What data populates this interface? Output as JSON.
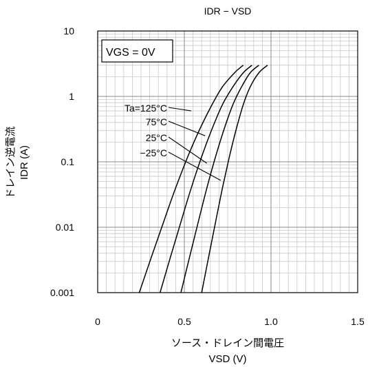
{
  "chart_data": {
    "type": "line",
    "title": "IDR − VSD",
    "xlabel_line1": "ソース・ドレイン間電圧",
    "xlabel_line2": "VSD (V)",
    "ylabel_line1": "ドレイン逆電流",
    "ylabel_line2": "IDR (A)",
    "xlim": [
      0,
      1.5
    ],
    "ylim": [
      0.001,
      10
    ],
    "yscale": "log",
    "grid": true,
    "x_ticks": [
      0,
      0.5,
      1.0,
      1.5
    ],
    "x_tick_labels": [
      "0",
      "0.5",
      "1.0",
      "1.5"
    ],
    "y_ticks": [
      0.001,
      0.01,
      0.1,
      1,
      10
    ],
    "y_tick_labels": [
      "0.001",
      "0.01",
      "0.1",
      "1",
      "10"
    ],
    "legend_box": "VGS = 0V",
    "series": [
      {
        "name": "Ta=125°C",
        "x": [
          0.24,
          0.31,
          0.38,
          0.45,
          0.52,
          0.59,
          0.66,
          0.72,
          0.79,
          0.84
        ],
        "y": [
          0.001,
          0.0035,
          0.012,
          0.04,
          0.12,
          0.32,
          0.75,
          1.4,
          2.3,
          3.0
        ]
      },
      {
        "name": "75°C",
        "x": [
          0.36,
          0.42,
          0.48,
          0.54,
          0.6,
          0.66,
          0.72,
          0.78,
          0.84,
          0.89
        ],
        "y": [
          0.001,
          0.0035,
          0.012,
          0.04,
          0.12,
          0.32,
          0.75,
          1.4,
          2.3,
          3.0
        ]
      },
      {
        "name": "25°C",
        "x": [
          0.48,
          0.53,
          0.58,
          0.63,
          0.68,
          0.73,
          0.78,
          0.83,
          0.88,
          0.93
        ],
        "y": [
          0.001,
          0.0035,
          0.012,
          0.04,
          0.12,
          0.32,
          0.75,
          1.4,
          2.3,
          3.0
        ]
      },
      {
        "name": "−25°C",
        "x": [
          0.6,
          0.64,
          0.68,
          0.72,
          0.76,
          0.8,
          0.84,
          0.88,
          0.93,
          0.98
        ],
        "y": [
          0.001,
          0.0035,
          0.012,
          0.04,
          0.12,
          0.32,
          0.75,
          1.4,
          2.3,
          3.0
        ]
      }
    ],
    "annotations": [
      {
        "text": "Ta=125°C",
        "target": [
          0.54,
          0.6
        ]
      },
      {
        "text": "75°C",
        "target": [
          0.62,
          0.25
        ]
      },
      {
        "text": "25°C",
        "target": [
          0.63,
          0.095
        ]
      },
      {
        "text": "−25°C",
        "target": [
          0.71,
          0.052
        ]
      }
    ]
  }
}
